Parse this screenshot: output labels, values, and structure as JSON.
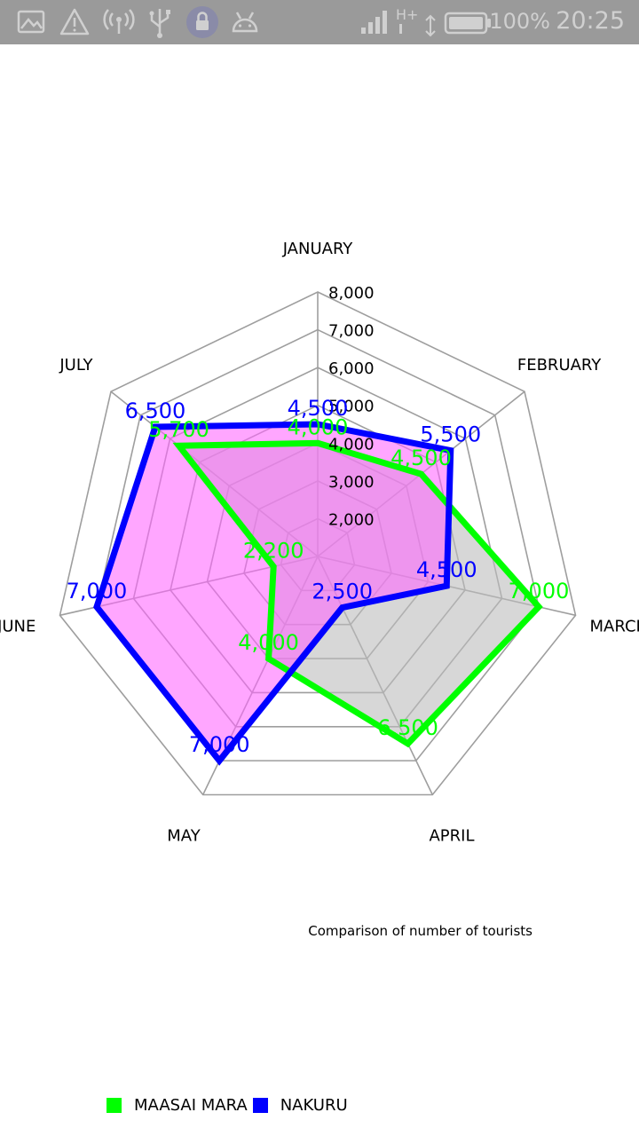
{
  "status_bar": {
    "battery_percent": "100%",
    "time": "20:25",
    "network_type": "H+",
    "icons": [
      "image-icon",
      "warning-icon",
      "wireless-signal-icon",
      "usb-icon",
      "lock-icon",
      "android-debug-icon",
      "cell-signal-icon",
      "data-arrows-icon",
      "battery-icon"
    ]
  },
  "chart_data": {
    "type": "radar",
    "categories": [
      "JANUARY",
      "FEBRUARY",
      "MARCH",
      "APRIL",
      "MAY",
      "JUNE",
      "JULY"
    ],
    "axis_ticks": [
      "2,000",
      "3,000",
      "4,000",
      "5,000",
      "6,000",
      "7,000",
      "8,000"
    ],
    "rmin": 1000,
    "rmax": 8000,
    "series": [
      {
        "name": "MAASAI MARA",
        "values": [
          4000,
          4500,
          7000,
          6500,
          4000,
          2200,
          5700
        ],
        "value_labels": [
          "4,000",
          "4,500",
          "7,000",
          "6,500",
          "4,000",
          "2,200",
          "5,700"
        ],
        "line_color": "#00ff00",
        "fill_color": "#bdbdbd"
      },
      {
        "name": "NAKURU",
        "values": [
          4500,
          5500,
          4500,
          2500,
          7000,
          7000,
          6500
        ],
        "value_labels": [
          "4,500",
          "5,500",
          "4,500",
          "2,500",
          "7,000",
          "7,000",
          "6,500"
        ],
        "line_color": "#0000ff",
        "fill_color": "#ff66ff"
      }
    ],
    "description": "Comparison of number of tourists",
    "legend_position": "bottom-left",
    "web_color": "#9e9e9e"
  }
}
